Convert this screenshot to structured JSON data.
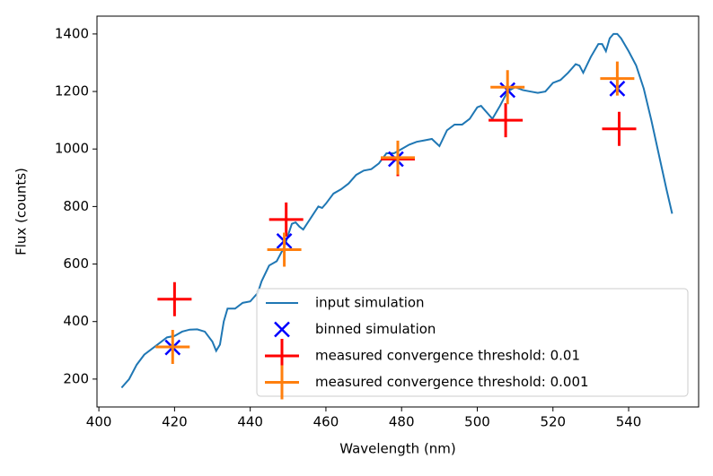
{
  "chart_data": {
    "type": "line",
    "x_label": "Wavelength (nm)",
    "y_label": "Flux (counts)",
    "xlim": [
      399.5,
      558.5
    ],
    "ylim": [
      103,
      1462
    ],
    "xticks": [
      400,
      420,
      440,
      460,
      480,
      500,
      520,
      540
    ],
    "yticks": [
      200,
      400,
      600,
      800,
      1000,
      1200,
      1400
    ],
    "grid": false,
    "legend": "lower right",
    "series": [
      {
        "name": "input simulation",
        "color": "#1f77b4",
        "style": "line",
        "x": [
          406,
          408,
          410,
          412,
          414,
          416,
          418,
          420,
          422,
          424,
          426,
          428,
          430,
          431,
          432,
          433,
          434,
          436,
          438,
          440,
          442,
          443,
          445,
          447,
          449,
          450,
          451,
          452,
          453,
          454,
          456,
          458,
          459,
          460,
          462,
          464,
          466,
          468,
          470,
          472,
          474,
          476,
          478,
          480,
          482,
          484,
          486,
          488,
          490,
          492,
          494,
          496,
          498,
          500,
          501,
          502,
          504,
          506,
          508,
          510,
          512,
          514,
          516,
          518,
          520,
          522,
          524,
          526,
          527,
          528,
          530,
          532,
          533,
          534,
          535,
          536,
          537,
          538,
          540,
          542,
          544,
          546,
          548,
          550,
          551.5
        ],
        "values": [
          170,
          200,
          250,
          285,
          305,
          325,
          345,
          350,
          365,
          372,
          373,
          365,
          330,
          298,
          320,
          400,
          445,
          445,
          465,
          470,
          500,
          540,
          595,
          610,
          660,
          700,
          740,
          745,
          730,
          720,
          760,
          800,
          795,
          810,
          845,
          860,
          880,
          910,
          925,
          930,
          950,
          985,
          985,
          1000,
          1015,
          1025,
          1030,
          1035,
          1010,
          1065,
          1085,
          1085,
          1105,
          1145,
          1150,
          1135,
          1105,
          1150,
          1200,
          1215,
          1205,
          1200,
          1195,
          1200,
          1230,
          1240,
          1265,
          1295,
          1290,
          1265,
          1320,
          1365,
          1365,
          1340,
          1385,
          1400,
          1400,
          1385,
          1340,
          1290,
          1210,
          1100,
          980,
          860,
          775
        ]
      },
      {
        "name": "binned simulation",
        "color": "#0000ff",
        "style": "x",
        "x": [
          419.5,
          449,
          478.5,
          508,
          537
        ],
        "values": [
          310,
          680,
          965,
          1205,
          1210
        ]
      },
      {
        "name": "measured convergence threshold: 0.01",
        "color": "#ff0000",
        "style": "plus",
        "x": [
          420,
          449.5,
          479,
          507.5,
          537.5
        ],
        "values": [
          478,
          755,
          965,
          1100,
          1070
        ]
      },
      {
        "name": "measured convergence threshold: 0.001",
        "color": "#ff7f0e",
        "style": "plus",
        "x": [
          419.5,
          449,
          479,
          508,
          537
        ],
        "values": [
          312,
          650,
          970,
          1215,
          1245
        ]
      }
    ]
  }
}
